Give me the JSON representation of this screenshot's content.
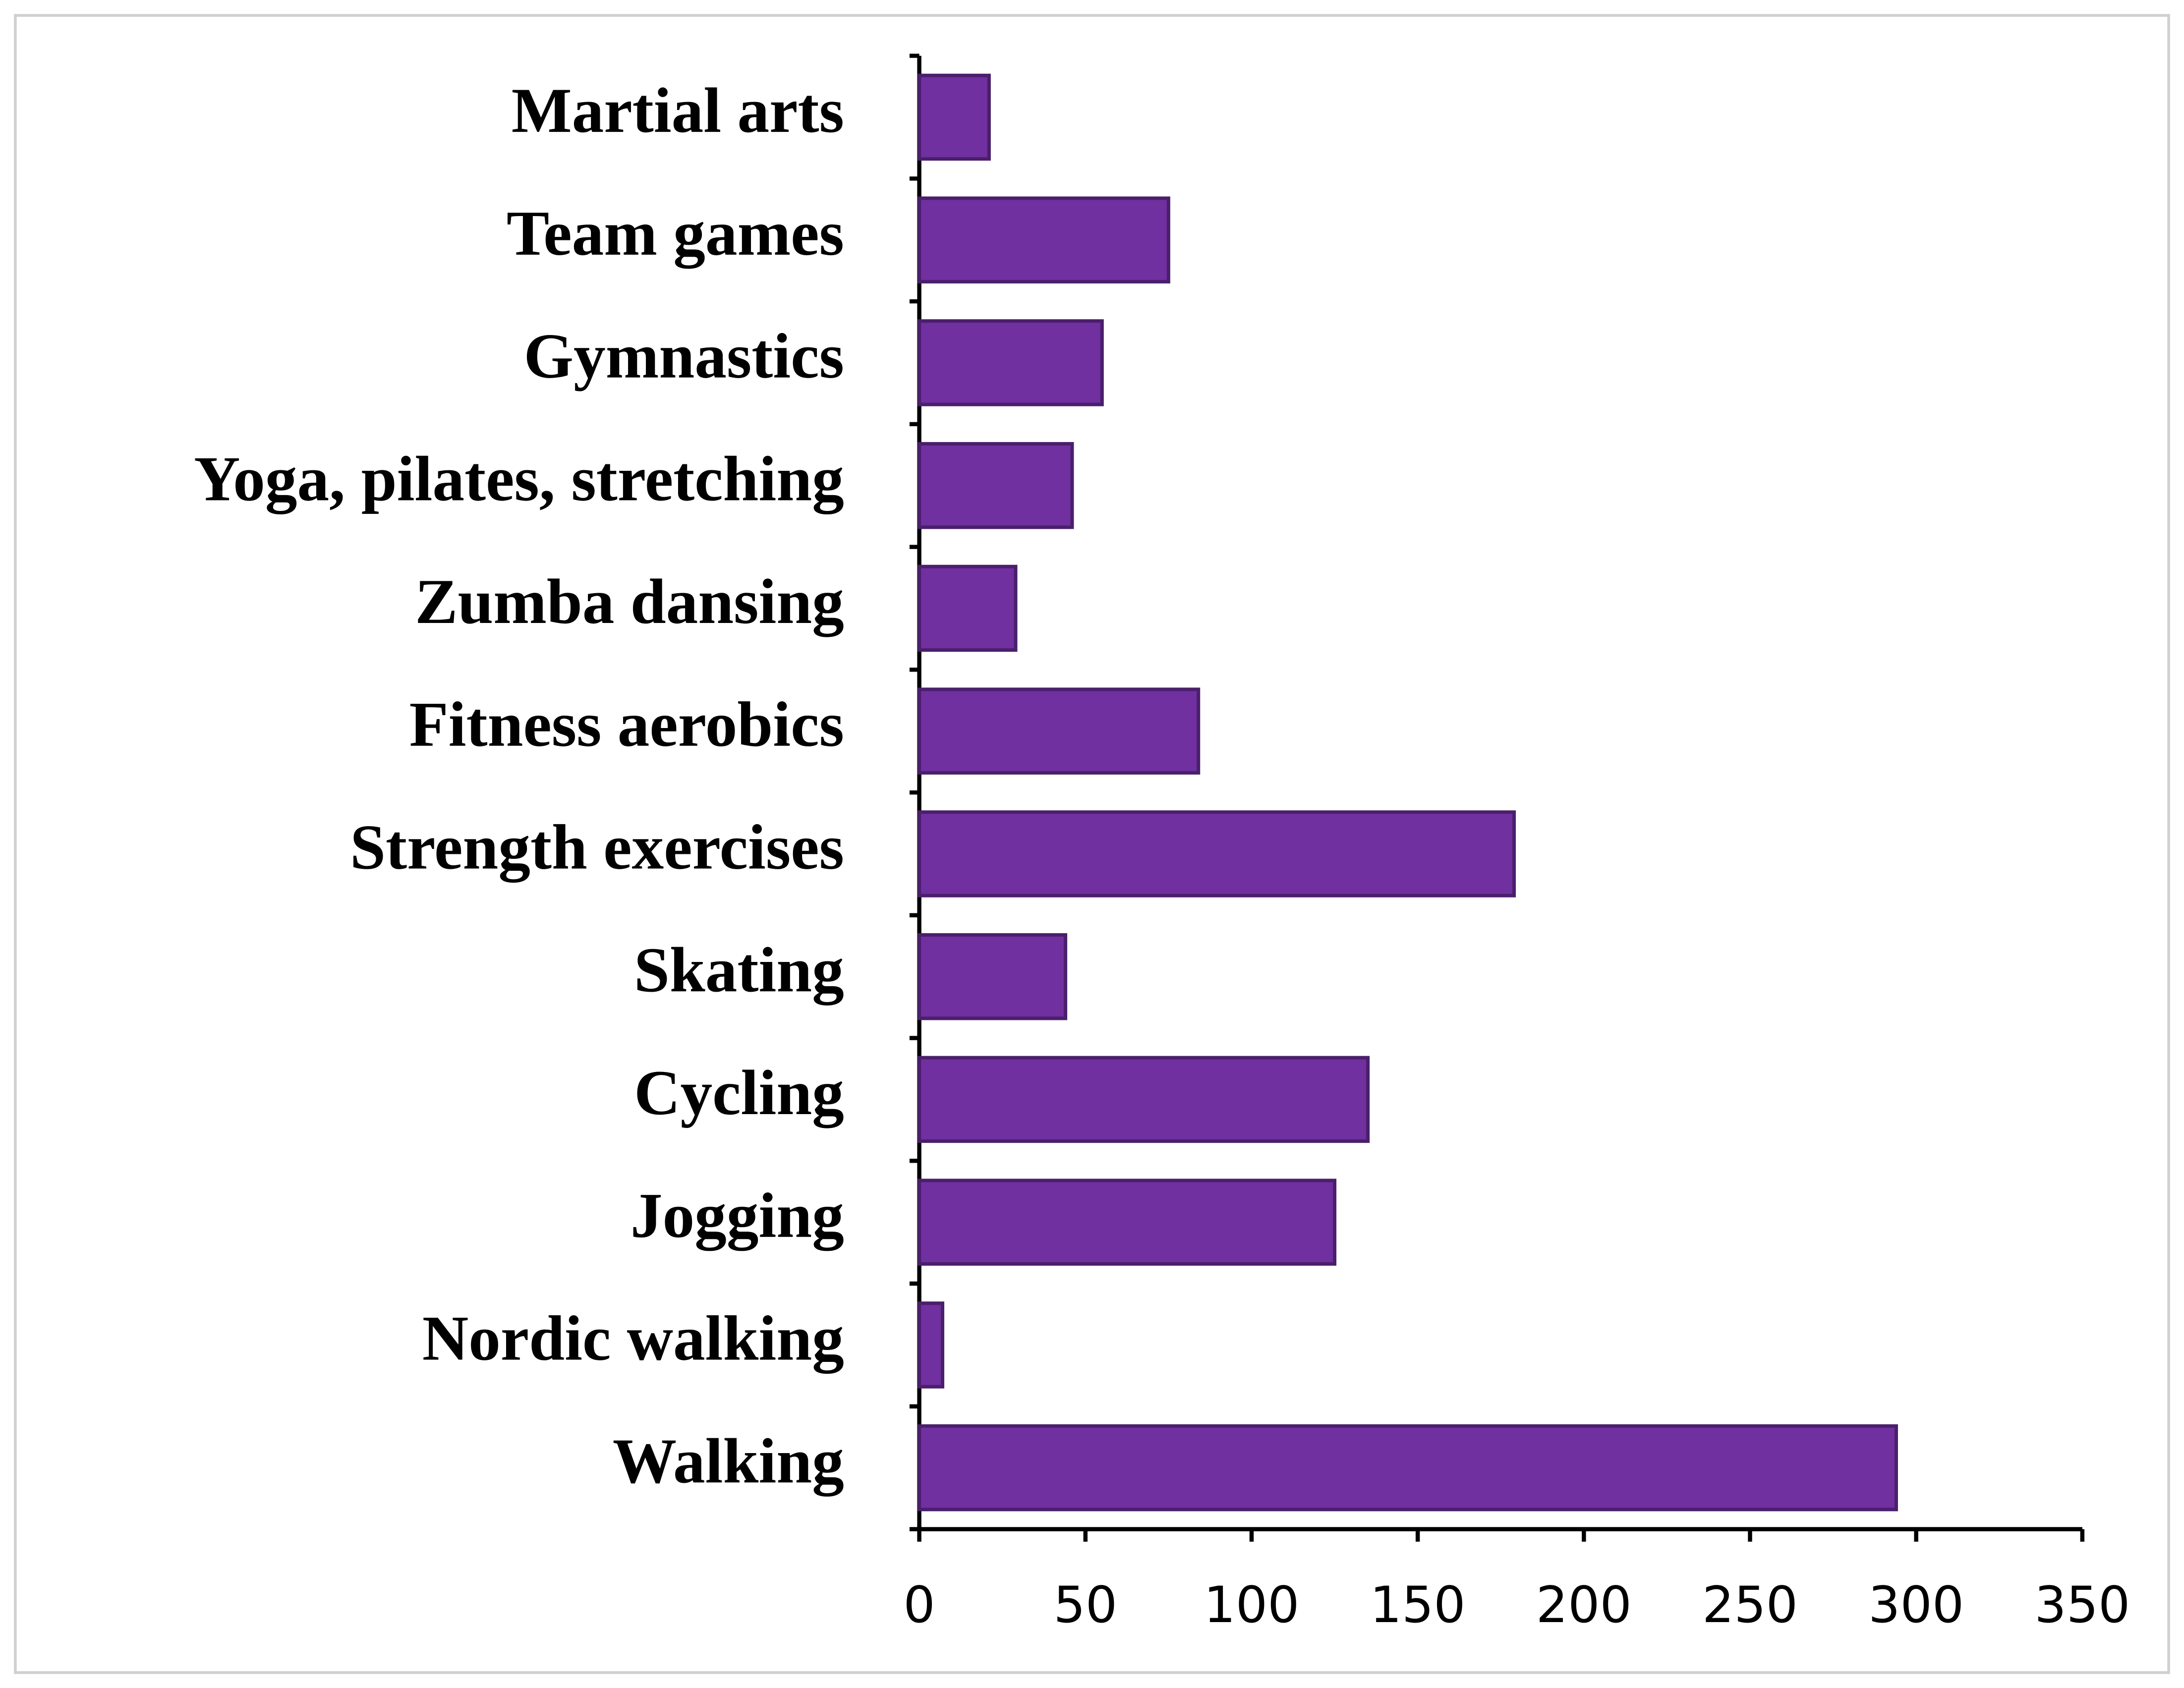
{
  "chart_data": {
    "type": "bar",
    "orientation": "horizontal",
    "categories": [
      "Martial arts",
      "Team games",
      "Gymnastics",
      "Yoga, pilates, stretching",
      "Zumba dansing",
      "Fitness aerobics",
      "Strength exercises",
      "Skating",
      "Cycling",
      "Jogging",
      "Nordic walking",
      "Walking"
    ],
    "values": [
      21,
      75,
      55,
      46,
      29,
      84,
      179,
      44,
      135,
      125,
      7,
      294
    ],
    "color": "#7030a0",
    "xlim": [
      0,
      350
    ],
    "xticks": [
      0,
      50,
      100,
      150,
      200,
      250,
      300,
      350
    ],
    "grid": false
  }
}
